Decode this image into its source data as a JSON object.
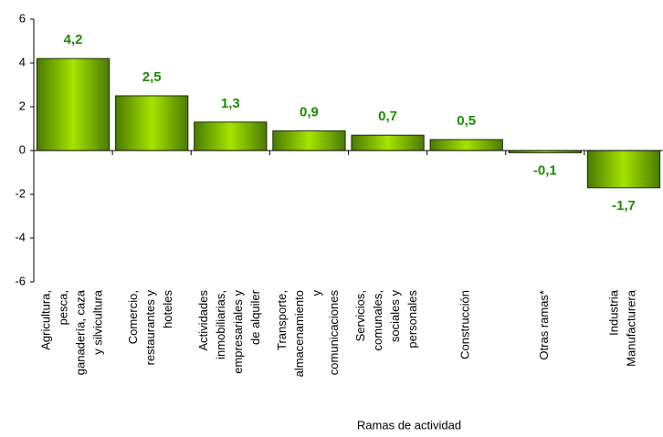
{
  "chart_data": {
    "type": "bar",
    "x_label": "Ramas de actividad",
    "categories": [
      "Agricultura,\npesca,\nganadería, caza\ny silvicultura",
      "Comercio,\nrestaurantes y\nhoteles",
      "Actividades\ninmobiliarias,\nempresariales y\nde alquiler",
      "Transporte,\nalmacenamiento\ny\ncomunicaciones",
      "Servicios,\ncomunales,\nsociales y\npersonales",
      "Construcción",
      "Otras ramas*",
      "Industria\nManufacturera"
    ],
    "values": [
      4.2,
      2.5,
      1.3,
      0.9,
      0.7,
      0.5,
      -0.1,
      -1.7
    ],
    "value_labels": [
      "4,2",
      "2,5",
      "1,3",
      "0,9",
      "0,7",
      "0,5",
      "-0,1",
      "-1,7"
    ],
    "color": "#7cc000",
    "ylim": [
      -6,
      6
    ],
    "yticks": [
      -6,
      -4,
      -2,
      0,
      2,
      4,
      6
    ],
    "grid": false
  }
}
